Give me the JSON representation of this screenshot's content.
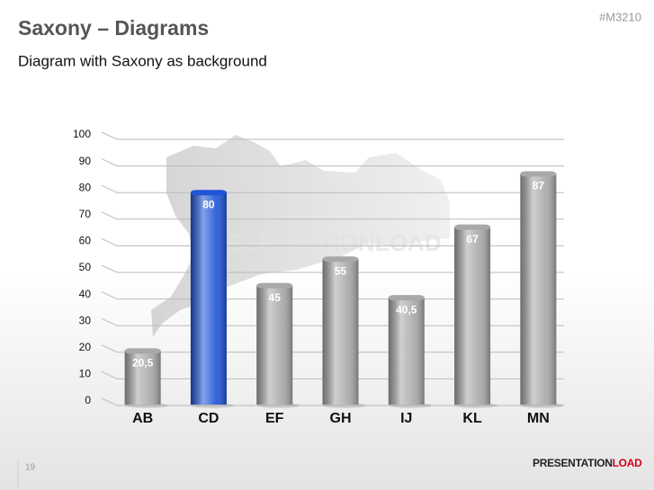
{
  "header": {
    "title": "Saxony – Diagrams",
    "subtitle": "Diagram with Saxony as background",
    "code": "#M3210"
  },
  "chart_data": {
    "type": "bar",
    "watermark": "PRESENTATIONLOAD",
    "categories": [
      "AB",
      "CD",
      "EF",
      "GH",
      "IJ",
      "KL",
      "MN"
    ],
    "values": [
      20.5,
      80,
      45,
      55,
      40.5,
      67,
      87
    ],
    "value_labels": [
      "20,5",
      "80",
      "45",
      "55",
      "40,5",
      "67",
      "87"
    ],
    "colors": [
      "#a8a8a8",
      "#1f55d6",
      "#a8a8a8",
      "#a8a8a8",
      "#a8a8a8",
      "#a8a8a8",
      "#a8a8a8"
    ],
    "ylim": [
      0,
      100
    ],
    "yticks": [
      0,
      10,
      20,
      30,
      40,
      50,
      60,
      70,
      80,
      90,
      100
    ],
    "grid": true
  },
  "footer": {
    "page_number": "19",
    "logo": [
      "PRESENTATION",
      "LOAD"
    ]
  }
}
